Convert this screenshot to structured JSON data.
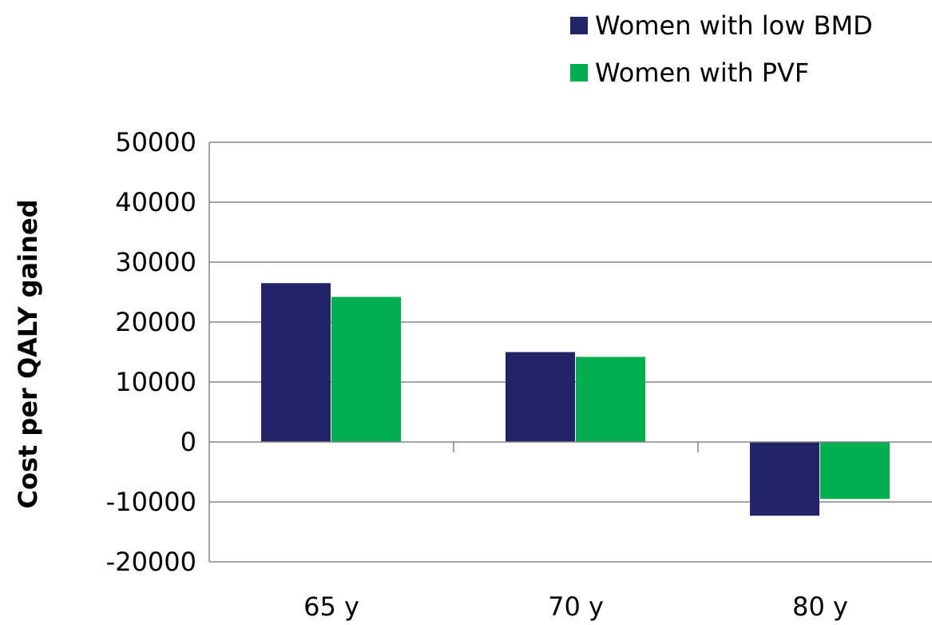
{
  "chart_data": {
    "type": "bar",
    "title": "",
    "xlabel": "",
    "ylabel": "Cost per QALY gained",
    "categories": [
      "65 y",
      "70 y",
      "80 y"
    ],
    "series": [
      {
        "name": "Women with low BMD",
        "color": "#232468",
        "values": [
          26500,
          15000,
          -12300
        ]
      },
      {
        "name": "Women with PVF",
        "color": "#00b050",
        "values": [
          24200,
          14200,
          -9500
        ]
      }
    ],
    "ylim": [
      -20000,
      50000
    ],
    "yticks": [
      "-20000",
      "-10000",
      "0",
      "10000",
      "20000",
      "30000",
      "40000",
      "50000"
    ],
    "grid": true,
    "legend_position": "top-right"
  }
}
